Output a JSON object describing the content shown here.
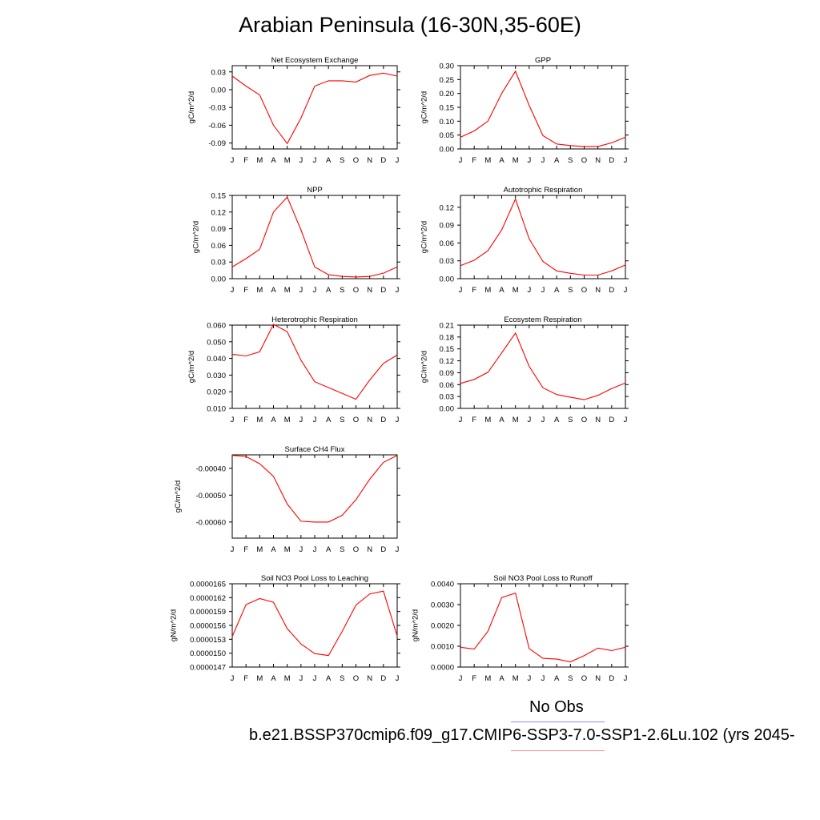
{
  "page": {
    "title": "Arabian Peninsula (16-30N,35-60E)",
    "legend_obs": "No Obs",
    "legend_run": "b.e21.BSSP370cmip6.f09_g17.CMIP6-SSP3-7.0-SSP1-2.6Lu.102 (yrs 2045-"
  },
  "colors": {
    "series": "#ff0000",
    "obs_line": "#8a8aff",
    "run_line": "#ff8a8a"
  },
  "chart_data": [
    {
      "type": "line",
      "title": "Net Ecosystem Exchange",
      "ylabel": "gC/m^2/d",
      "x": [
        "J",
        "F",
        "M",
        "A",
        "M",
        "J",
        "J",
        "A",
        "S",
        "O",
        "N",
        "D",
        "J"
      ],
      "ylim": [
        -0.1,
        0.0405
      ],
      "yticks": [
        0.03,
        0.0,
        -0.03,
        -0.06,
        -0.09
      ],
      "ytick_labels": [
        "0.03",
        "0.00",
        "-0.03",
        "-0.06",
        "-0.09"
      ],
      "series": [
        {
          "values": [
            0.023,
            0.006,
            -0.009,
            -0.06,
            -0.091,
            -0.048,
            0.006,
            0.015,
            0.015,
            0.013,
            0.024,
            0.028,
            0.023
          ]
        }
      ]
    },
    {
      "type": "line",
      "title": "GPP",
      "ylabel": "gC/m^2/d",
      "x": [
        "J",
        "F",
        "M",
        "A",
        "M",
        "J",
        "J",
        "A",
        "S",
        "O",
        "N",
        "D",
        "J"
      ],
      "ylim": [
        0.0,
        0.3
      ],
      "yticks": [
        0.0,
        0.05,
        0.1,
        0.15,
        0.2,
        0.25,
        0.3
      ],
      "ytick_labels": [
        "0.00",
        "0.05",
        "0.10",
        "0.15",
        "0.20",
        "0.25",
        "0.30"
      ],
      "series": [
        {
          "values": [
            0.042,
            0.065,
            0.1,
            0.2,
            0.28,
            0.157,
            0.048,
            0.018,
            0.012,
            0.009,
            0.009,
            0.022,
            0.042
          ]
        }
      ]
    },
    {
      "type": "line",
      "title": "NPP",
      "ylabel": "gC/m^2/d",
      "x": [
        "J",
        "F",
        "M",
        "A",
        "M",
        "J",
        "J",
        "A",
        "S",
        "O",
        "N",
        "D",
        "J"
      ],
      "ylim": [
        0.0,
        0.15
      ],
      "yticks": [
        0.0,
        0.03,
        0.06,
        0.09,
        0.12,
        0.15
      ],
      "ytick_labels": [
        "0.00",
        "0.03",
        "0.06",
        "0.09",
        "0.12",
        "0.15"
      ],
      "series": [
        {
          "values": [
            0.021,
            0.036,
            0.053,
            0.12,
            0.147,
            0.088,
            0.021,
            0.007,
            0.004,
            0.003,
            0.004,
            0.01,
            0.021
          ]
        }
      ]
    },
    {
      "type": "line",
      "title": "Autotrophic Respiration",
      "ylabel": "gC/m^2/d",
      "x": [
        "J",
        "F",
        "M",
        "A",
        "M",
        "J",
        "J",
        "A",
        "S",
        "O",
        "N",
        "D",
        "J"
      ],
      "ylim": [
        0.0,
        0.14
      ],
      "yticks": [
        0.0,
        0.03,
        0.06,
        0.09,
        0.12
      ],
      "ytick_labels": [
        "0.00",
        "0.03",
        "0.06",
        "0.09",
        "0.12"
      ],
      "series": [
        {
          "values": [
            0.022,
            0.031,
            0.047,
            0.082,
            0.134,
            0.067,
            0.029,
            0.013,
            0.009,
            0.006,
            0.006,
            0.013,
            0.023
          ]
        }
      ]
    },
    {
      "type": "line",
      "title": "Heterotrophic Respiration",
      "ylabel": "gC/m^2/d",
      "x": [
        "J",
        "F",
        "M",
        "A",
        "M",
        "J",
        "J",
        "A",
        "S",
        "O",
        "N",
        "D",
        "J"
      ],
      "ylim": [
        0.01,
        0.06
      ],
      "yticks": [
        0.01,
        0.02,
        0.03,
        0.04,
        0.05,
        0.06
      ],
      "ytick_labels": [
        "0.010",
        "0.020",
        "0.030",
        "0.040",
        "0.050",
        "0.060"
      ],
      "series": [
        {
          "values": [
            0.0425,
            0.0415,
            0.044,
            0.0605,
            0.056,
            0.039,
            0.026,
            0.0225,
            0.019,
            0.0155,
            0.027,
            0.037,
            0.042
          ]
        }
      ]
    },
    {
      "type": "line",
      "title": "Ecosystem Respiration",
      "ylabel": "gC/m^2/d",
      "x": [
        "J",
        "F",
        "M",
        "A",
        "M",
        "J",
        "J",
        "A",
        "S",
        "O",
        "N",
        "D",
        "J"
      ],
      "ylim": [
        0.0,
        0.21
      ],
      "yticks": [
        0.0,
        0.03,
        0.06,
        0.09,
        0.12,
        0.15,
        0.18,
        0.21
      ],
      "ytick_labels": [
        "0.00",
        "0.03",
        "0.06",
        "0.09",
        "0.12",
        "0.15",
        "0.18",
        "0.21"
      ],
      "series": [
        {
          "values": [
            0.063,
            0.073,
            0.091,
            0.14,
            0.19,
            0.106,
            0.052,
            0.035,
            0.028,
            0.022,
            0.033,
            0.05,
            0.064
          ]
        }
      ]
    },
    {
      "type": "line",
      "title": "Surface CH4 Flux",
      "ylabel": "gC/m^2/d",
      "x": [
        "J",
        "F",
        "M",
        "A",
        "M",
        "J",
        "J",
        "A",
        "S",
        "O",
        "N",
        "D",
        "J"
      ],
      "ylim": [
        -0.00066,
        -0.00035
      ],
      "yticks": [
        -0.0004,
        -0.0005,
        -0.0006
      ],
      "ytick_labels": [
        "-0.00040",
        "-0.00050",
        "-0.00060"
      ],
      "series": [
        {
          "values": [
            -0.000352,
            -0.000356,
            -0.000383,
            -0.00043,
            -0.000533,
            -0.000597,
            -0.0006,
            -0.0006,
            -0.000575,
            -0.000517,
            -0.000441,
            -0.000378,
            -0.000352
          ]
        }
      ]
    },
    {
      "type": "line",
      "title": "Soil NO3 Pool Loss to Leaching",
      "ylabel": "gN/m^2/d",
      "x": [
        "J",
        "F",
        "M",
        "A",
        "M",
        "J",
        "J",
        "A",
        "S",
        "O",
        "N",
        "D",
        "J"
      ],
      "ylim": [
        1.47e-05,
        1.65e-05
      ],
      "yticks": [
        1.47e-05,
        1.5e-05,
        1.53e-05,
        1.56e-05,
        1.59e-05,
        1.62e-05,
        1.65e-05
      ],
      "ytick_labels": [
        "0.0000147",
        "0.0000150",
        "0.0000153",
        "0.0000156",
        "0.0000159",
        "0.0000162",
        "0.0000165"
      ],
      "series": [
        {
          "values": [
            1.536e-05,
            1.605e-05,
            1.618e-05,
            1.61e-05,
            1.553e-05,
            1.52e-05,
            1.499e-05,
            1.495e-05,
            1.547e-05,
            1.604e-05,
            1.628e-05,
            1.634e-05,
            1.537e-05
          ]
        }
      ]
    },
    {
      "type": "line",
      "title": "Soil NO3 Pool Loss to Runoff",
      "ylabel": "gN/m^2/d",
      "x": [
        "J",
        "F",
        "M",
        "A",
        "M",
        "J",
        "J",
        "A",
        "S",
        "O",
        "N",
        "D",
        "J"
      ],
      "ylim": [
        0.0,
        0.004
      ],
      "yticks": [
        0.0,
        0.001,
        0.002,
        0.003,
        0.004
      ],
      "ytick_labels": [
        "0.0000",
        "0.0010",
        "0.0020",
        "0.0030",
        "0.0040"
      ],
      "series": [
        {
          "values": [
            0.00095,
            0.00086,
            0.00172,
            0.00334,
            0.00355,
            0.00089,
            0.00042,
            0.00038,
            0.00025,
            0.00055,
            0.00091,
            0.00079,
            0.00095
          ]
        }
      ]
    }
  ]
}
